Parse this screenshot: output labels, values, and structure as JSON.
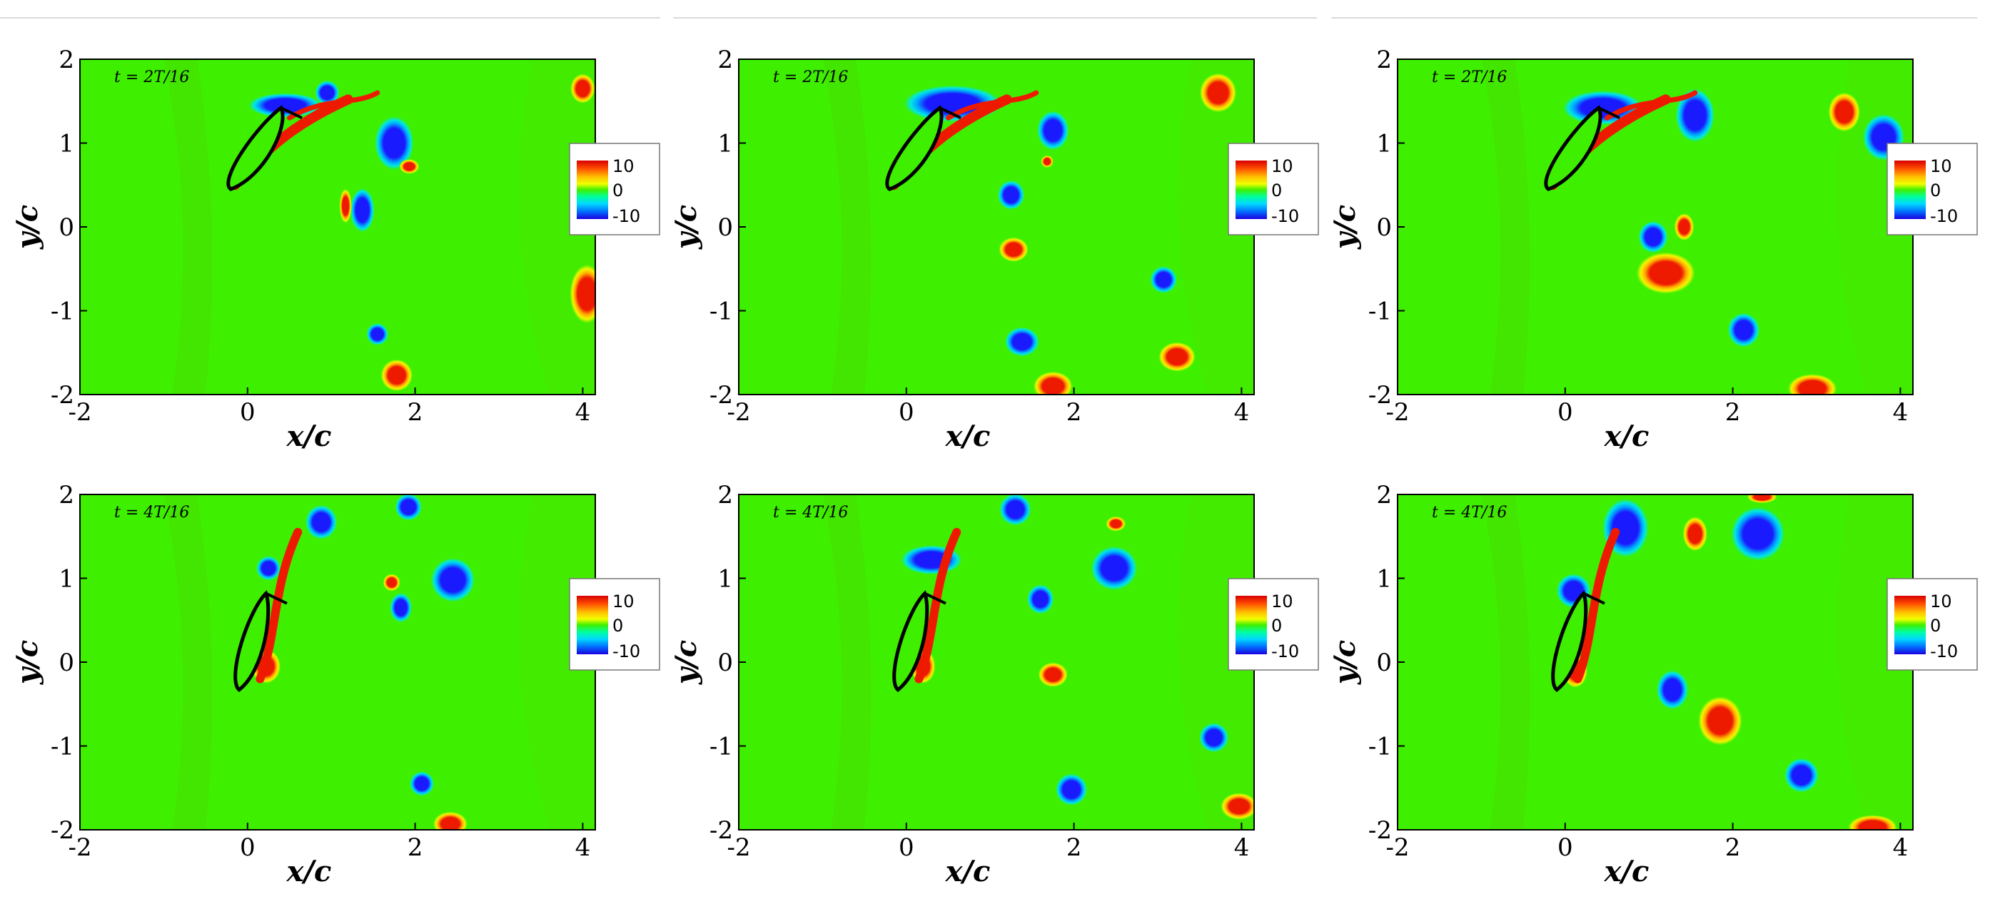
{
  "figure": {
    "panels": [
      {
        "time_label": "t = 2T/16",
        "xlabel": "x/c",
        "ylabel": "y/c"
      },
      {
        "time_label": "t = 2T/16",
        "xlabel": "x/c",
        "ylabel": "y/c"
      },
      {
        "time_label": "t = 2T/16",
        "xlabel": "x/c",
        "ylabel": "y/c"
      },
      {
        "time_label": "t = 4T/16",
        "xlabel": "x/c",
        "ylabel": "y/c"
      },
      {
        "time_label": "t = 4T/16",
        "xlabel": "x/c",
        "ylabel": "y/c"
      },
      {
        "time_label": "t = 4T/16",
        "xlabel": "x/c",
        "ylabel": "y/c"
      }
    ],
    "colorbar_ticks": [
      "10",
      "0",
      "-10"
    ],
    "colors": {
      "background_field": "#3ef000",
      "positive_vorticity": "#ee1a00",
      "negative_vorticity": "#1a1aff",
      "body_outline": "#000000"
    }
  },
  "chart_data": [
    {
      "type": "heatmap",
      "panel": "top-left",
      "time_label": "t = 2T/16",
      "xlabel": "x/c",
      "ylabel": "y/c",
      "xlim": [
        -2,
        4.15
      ],
      "ylim": [
        -2,
        2
      ],
      "xticks": [
        "-2",
        "0",
        "2",
        "4"
      ],
      "yticks": [
        "-2",
        "-1",
        "0",
        "1",
        "2"
      ],
      "colorbar": {
        "range": [
          -10,
          10
        ],
        "ticks": [
          "10",
          "0",
          "-10"
        ],
        "position": "right"
      },
      "vortices": [
        {
          "x": 0.45,
          "y": 1.45,
          "rx": 0.3,
          "ry": 0.1,
          "sign": "negative"
        },
        {
          "x": 0.95,
          "y": 1.6,
          "rx": 0.1,
          "ry": 0.1,
          "sign": "negative"
        },
        {
          "x": 1.75,
          "y": 1.0,
          "rx": 0.16,
          "ry": 0.22,
          "sign": "negative"
        },
        {
          "x": 1.93,
          "y": 0.72,
          "rx": 0.08,
          "ry": 0.06,
          "sign": "positive"
        },
        {
          "x": 1.37,
          "y": 0.2,
          "rx": 0.1,
          "ry": 0.18,
          "sign": "negative"
        },
        {
          "x": 1.17,
          "y": 0.25,
          "rx": 0.05,
          "ry": 0.14,
          "sign": "positive"
        },
        {
          "x": 1.55,
          "y": -1.28,
          "rx": 0.09,
          "ry": 0.09,
          "sign": "negative"
        },
        {
          "x": 1.78,
          "y": -1.77,
          "rx": 0.13,
          "ry": 0.13,
          "sign": "positive"
        },
        {
          "x": 4.05,
          "y": -0.8,
          "rx": 0.14,
          "ry": 0.24,
          "sign": "positive"
        },
        {
          "x": 4.0,
          "y": 1.65,
          "rx": 0.1,
          "ry": 0.12,
          "sign": "positive"
        }
      ]
    },
    {
      "type": "heatmap",
      "panel": "top-middle",
      "time_label": "t = 2T/16",
      "xlabel": "x/c",
      "ylabel": "y/c",
      "xlim": [
        -2,
        4.15
      ],
      "ylim": [
        -2,
        2
      ],
      "xticks": [
        "-2",
        "0",
        "2",
        "4"
      ],
      "yticks": [
        "-2",
        "-1",
        "0",
        "1",
        "2"
      ],
      "colorbar": {
        "range": [
          -10,
          10
        ],
        "ticks": [
          "10",
          "0",
          "-10"
        ],
        "position": "right"
      },
      "vortices": [
        {
          "x": 0.55,
          "y": 1.47,
          "rx": 0.4,
          "ry": 0.15,
          "sign": "negative"
        },
        {
          "x": 1.75,
          "y": 1.15,
          "rx": 0.13,
          "ry": 0.16,
          "sign": "negative"
        },
        {
          "x": 1.68,
          "y": 0.78,
          "rx": 0.05,
          "ry": 0.05,
          "sign": "positive"
        },
        {
          "x": 1.25,
          "y": 0.38,
          "rx": 0.11,
          "ry": 0.12,
          "sign": "negative"
        },
        {
          "x": 1.28,
          "y": -0.27,
          "rx": 0.12,
          "ry": 0.1,
          "sign": "positive"
        },
        {
          "x": 1.38,
          "y": -1.37,
          "rx": 0.14,
          "ry": 0.12,
          "sign": "negative"
        },
        {
          "x": 1.75,
          "y": -1.9,
          "rx": 0.16,
          "ry": 0.12,
          "sign": "positive"
        },
        {
          "x": 3.07,
          "y": -0.63,
          "rx": 0.11,
          "ry": 0.11,
          "sign": "negative"
        },
        {
          "x": 3.23,
          "y": -1.55,
          "rx": 0.15,
          "ry": 0.12,
          "sign": "positive"
        },
        {
          "x": 3.72,
          "y": 1.6,
          "rx": 0.15,
          "ry": 0.16,
          "sign": "positive"
        }
      ]
    },
    {
      "type": "heatmap",
      "panel": "top-right",
      "time_label": "t = 2T/16",
      "xlabel": "x/c",
      "ylabel": "y/c",
      "xlim": [
        -2,
        4.15
      ],
      "ylim": [
        -2,
        2
      ],
      "xticks": [
        "-2",
        "0",
        "2",
        "4"
      ],
      "yticks": [
        "-2",
        "-1",
        "0",
        "1",
        "2"
      ],
      "colorbar": {
        "range": [
          -10,
          10
        ],
        "ticks": [
          "10",
          "0",
          "-10"
        ],
        "position": "right"
      },
      "vortices": [
        {
          "x": 0.45,
          "y": 1.42,
          "rx": 0.33,
          "ry": 0.14,
          "sign": "negative"
        },
        {
          "x": 1.55,
          "y": 1.33,
          "rx": 0.16,
          "ry": 0.22,
          "sign": "negative"
        },
        {
          "x": 3.33,
          "y": 1.37,
          "rx": 0.13,
          "ry": 0.16,
          "sign": "positive"
        },
        {
          "x": 3.8,
          "y": 1.07,
          "rx": 0.17,
          "ry": 0.19,
          "sign": "negative"
        },
        {
          "x": 1.05,
          "y": -0.12,
          "rx": 0.12,
          "ry": 0.13,
          "sign": "negative"
        },
        {
          "x": 1.42,
          "y": 0.0,
          "rx": 0.08,
          "ry": 0.11,
          "sign": "positive"
        },
        {
          "x": 1.2,
          "y": -0.55,
          "rx": 0.24,
          "ry": 0.17,
          "sign": "positive"
        },
        {
          "x": 2.13,
          "y": -1.23,
          "rx": 0.13,
          "ry": 0.14,
          "sign": "negative"
        },
        {
          "x": 2.95,
          "y": -1.93,
          "rx": 0.2,
          "ry": 0.12,
          "sign": "positive"
        }
      ]
    },
    {
      "type": "heatmap",
      "panel": "bottom-left",
      "time_label": "t = 4T/16",
      "xlabel": "x/c",
      "ylabel": "y/c",
      "xlim": [
        -2,
        4.15
      ],
      "ylim": [
        -2,
        2
      ],
      "xticks": [
        "-2",
        "0",
        "2",
        "4"
      ],
      "yticks": [
        "-2",
        "-1",
        "0",
        "1",
        "2"
      ],
      "colorbar": {
        "range": [
          -10,
          10
        ],
        "ticks": [
          "10",
          "0",
          "-10"
        ],
        "position": "right"
      },
      "vortices": [
        {
          "x": 0.88,
          "y": 1.67,
          "rx": 0.13,
          "ry": 0.14,
          "sign": "negative"
        },
        {
          "x": 1.92,
          "y": 1.85,
          "rx": 0.11,
          "ry": 0.11,
          "sign": "negative"
        },
        {
          "x": 0.25,
          "y": 1.12,
          "rx": 0.1,
          "ry": 0.1,
          "sign": "negative"
        },
        {
          "x": 2.45,
          "y": 0.98,
          "rx": 0.18,
          "ry": 0.18,
          "sign": "negative"
        },
        {
          "x": 1.83,
          "y": 0.65,
          "rx": 0.09,
          "ry": 0.12,
          "sign": "negative"
        },
        {
          "x": 1.72,
          "y": 0.95,
          "rx": 0.07,
          "ry": 0.07,
          "sign": "positive"
        },
        {
          "x": 0.22,
          "y": -0.05,
          "rx": 0.12,
          "ry": 0.14,
          "sign": "positive"
        },
        {
          "x": 2.08,
          "y": -1.45,
          "rx": 0.1,
          "ry": 0.1,
          "sign": "negative"
        },
        {
          "x": 2.42,
          "y": -1.93,
          "rx": 0.14,
          "ry": 0.1,
          "sign": "positive"
        }
      ]
    },
    {
      "type": "heatmap",
      "panel": "bottom-middle",
      "time_label": "t = 4T/16",
      "xlabel": "x/c",
      "ylabel": "y/c",
      "xlim": [
        -2,
        4.15
      ],
      "ylim": [
        -2,
        2
      ],
      "xticks": [
        "-2",
        "0",
        "2",
        "4"
      ],
      "yticks": [
        "-2",
        "-1",
        "0",
        "1",
        "2"
      ],
      "colorbar": {
        "range": [
          -10,
          10
        ],
        "ticks": [
          "10",
          "0",
          "-10"
        ],
        "position": "right"
      },
      "vortices": [
        {
          "x": 0.3,
          "y": 1.22,
          "rx": 0.25,
          "ry": 0.12,
          "sign": "negative"
        },
        {
          "x": 1.3,
          "y": 1.82,
          "rx": 0.13,
          "ry": 0.13,
          "sign": "negative"
        },
        {
          "x": 2.5,
          "y": 1.65,
          "rx": 0.08,
          "ry": 0.06,
          "sign": "positive"
        },
        {
          "x": 2.48,
          "y": 1.12,
          "rx": 0.19,
          "ry": 0.18,
          "sign": "negative"
        },
        {
          "x": 1.6,
          "y": 0.75,
          "rx": 0.11,
          "ry": 0.12,
          "sign": "negative"
        },
        {
          "x": 1.75,
          "y": -0.15,
          "rx": 0.12,
          "ry": 0.1,
          "sign": "positive"
        },
        {
          "x": 1.97,
          "y": -1.52,
          "rx": 0.13,
          "ry": 0.13,
          "sign": "negative"
        },
        {
          "x": 3.67,
          "y": -0.9,
          "rx": 0.12,
          "ry": 0.12,
          "sign": "negative"
        },
        {
          "x": 3.97,
          "y": -1.72,
          "rx": 0.15,
          "ry": 0.11,
          "sign": "positive"
        },
        {
          "x": 0.2,
          "y": -0.05,
          "rx": 0.1,
          "ry": 0.14,
          "sign": "positive"
        }
      ]
    },
    {
      "type": "heatmap",
      "panel": "bottom-right",
      "time_label": "t = 4T/16",
      "xlabel": "x/c",
      "ylabel": "y/c",
      "xlim": [
        -2,
        4.15
      ],
      "ylim": [
        -2,
        2
      ],
      "xticks": [
        "-2",
        "0",
        "2",
        "4"
      ],
      "yticks": [
        "-2",
        "-1",
        "0",
        "1",
        "2"
      ],
      "colorbar": {
        "range": [
          -10,
          10
        ],
        "ticks": [
          "10",
          "0",
          "-10"
        ],
        "position": "right"
      },
      "vortices": [
        {
          "x": 0.1,
          "y": 0.85,
          "rx": 0.14,
          "ry": 0.14,
          "sign": "negative"
        },
        {
          "x": 0.72,
          "y": 1.6,
          "rx": 0.19,
          "ry": 0.24,
          "sign": "negative"
        },
        {
          "x": 1.55,
          "y": 1.53,
          "rx": 0.1,
          "ry": 0.14,
          "sign": "positive"
        },
        {
          "x": 2.3,
          "y": 1.53,
          "rx": 0.22,
          "ry": 0.22,
          "sign": "negative"
        },
        {
          "x": 2.35,
          "y": 1.97,
          "rx": 0.12,
          "ry": 0.05,
          "sign": "positive"
        },
        {
          "x": 1.85,
          "y": -0.7,
          "rx": 0.18,
          "ry": 0.2,
          "sign": "positive"
        },
        {
          "x": 1.28,
          "y": -0.33,
          "rx": 0.13,
          "ry": 0.16,
          "sign": "negative"
        },
        {
          "x": 2.82,
          "y": -1.35,
          "rx": 0.14,
          "ry": 0.14,
          "sign": "negative"
        },
        {
          "x": 3.67,
          "y": -1.97,
          "rx": 0.2,
          "ry": 0.1,
          "sign": "positive"
        },
        {
          "x": 0.12,
          "y": -0.1,
          "rx": 0.1,
          "ry": 0.14,
          "sign": "positive"
        }
      ]
    }
  ]
}
